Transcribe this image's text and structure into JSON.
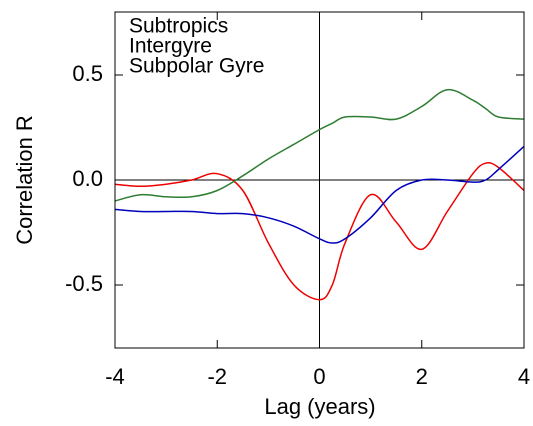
{
  "chart_data": {
    "type": "line",
    "xlabel": "Lag (years)",
    "ylabel": "Correlation R",
    "x": [
      -4,
      -3.5,
      -3,
      -2.5,
      -2,
      -1.5,
      -1,
      -0.5,
      0,
      0.25,
      0.5,
      1,
      1.5,
      2,
      2.5,
      3,
      3.25,
      3.5,
      4
    ],
    "series": [
      {
        "name": "Subtropics",
        "color": "#ee0000",
        "values": [
          -0.02,
          -0.03,
          -0.02,
          0.0,
          0.03,
          -0.05,
          -0.3,
          -0.5,
          -0.57,
          -0.5,
          -0.3,
          -0.07,
          -0.2,
          -0.33,
          -0.15,
          0.03,
          0.08,
          0.06,
          -0.05
        ]
      },
      {
        "name": "Intergyre",
        "color": "#2e7d32",
        "values": [
          -0.1,
          -0.07,
          -0.08,
          -0.08,
          -0.05,
          0.02,
          0.1,
          0.17,
          0.24,
          0.27,
          0.3,
          0.3,
          0.29,
          0.35,
          0.43,
          0.38,
          0.34,
          0.3,
          0.29
        ]
      },
      {
        "name": "Subpolar Gyre",
        "color": "#0000bb",
        "values": [
          -0.14,
          -0.15,
          -0.15,
          -0.15,
          -0.16,
          -0.16,
          -0.18,
          -0.22,
          -0.28,
          -0.3,
          -0.28,
          -0.18,
          -0.05,
          0.0,
          0.0,
          -0.01,
          0.0,
          0.05,
          0.16
        ]
      }
    ],
    "xlim": [
      -4,
      4
    ],
    "xticks": [
      -4,
      -2,
      0,
      2,
      4
    ],
    "ylim": [
      -0.8,
      0.8
    ],
    "yticks": [
      -0.5,
      {
        "value": 0,
        "label": "0.0"
      },
      0.5
    ],
    "legend": "upper left"
  }
}
